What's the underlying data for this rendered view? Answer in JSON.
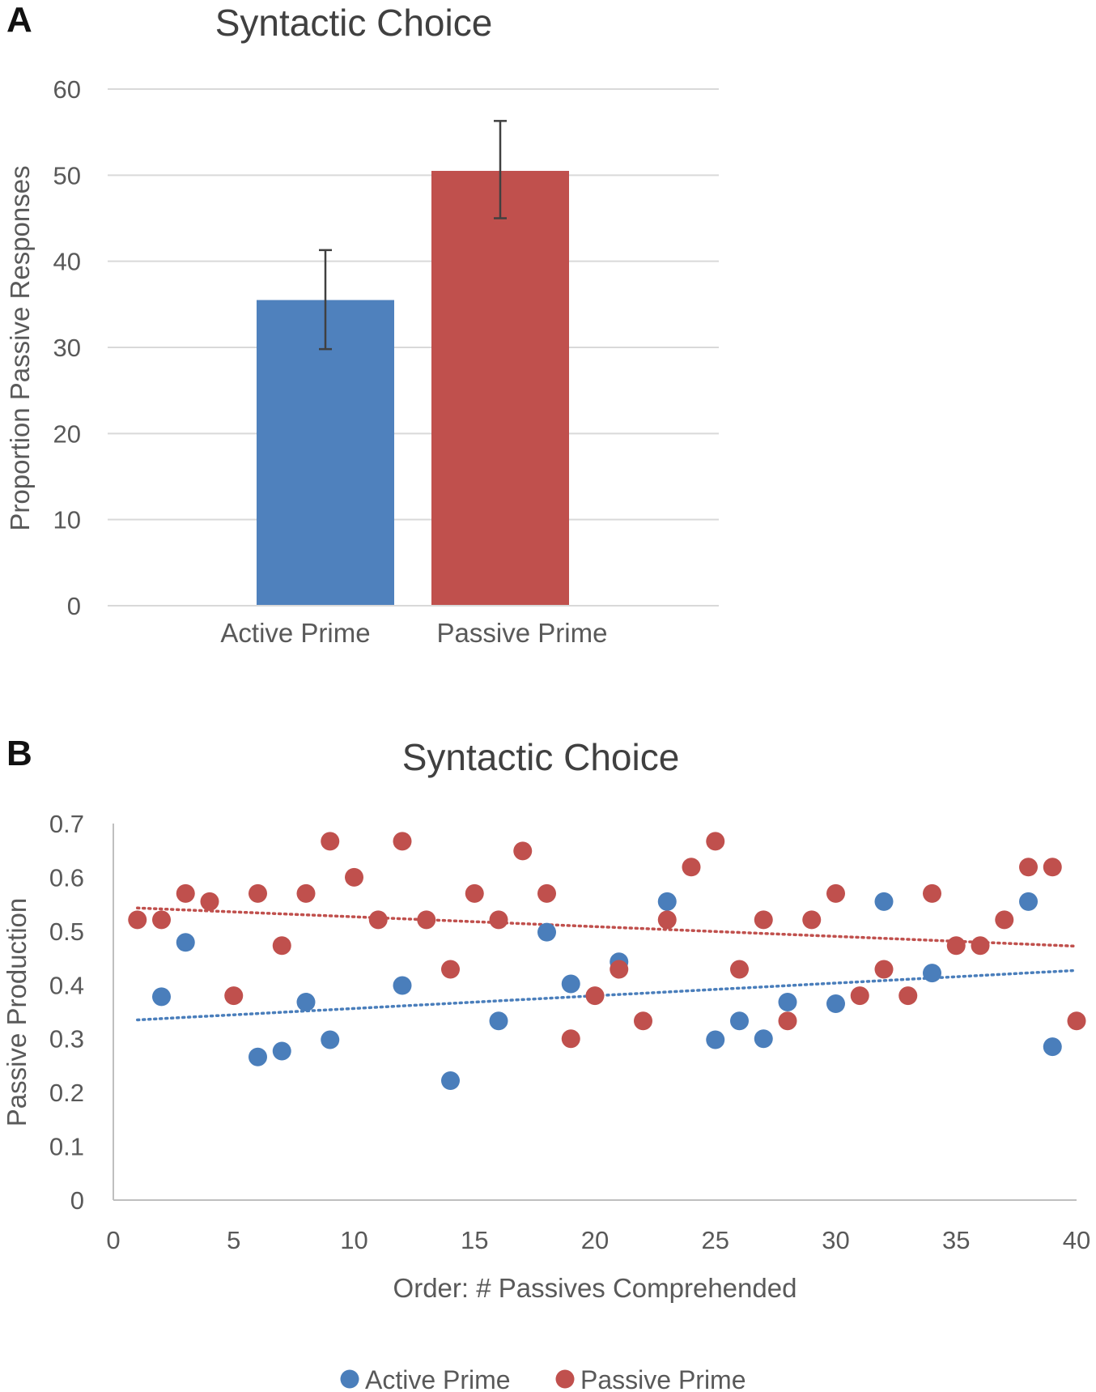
{
  "panels": {
    "a": "A",
    "b": "B"
  },
  "chart_data": [
    {
      "type": "bar",
      "title": "Syntactic Choice",
      "ylabel": "Proportion Passive Responses",
      "xlabel": "",
      "ylim": [
        0,
        60
      ],
      "yticks": [
        0,
        10,
        20,
        30,
        40,
        50,
        60
      ],
      "grid": true,
      "categories": [
        "Active Prime",
        "Passive Prime"
      ],
      "values": [
        35.5,
        50.5
      ],
      "error_low": [
        29.8,
        45.0
      ],
      "error_high": [
        41.3,
        56.3
      ],
      "colors": [
        "#4f81bd",
        "#c0504d"
      ]
    },
    {
      "type": "scatter",
      "title": "Syntactic Choice",
      "xlabel": "Order: # Passives Comprehended",
      "ylabel": "Passive Production",
      "xlim": [
        0,
        40
      ],
      "ylim": [
        0,
        0.7
      ],
      "xticks": [
        0,
        5,
        10,
        15,
        20,
        25,
        30,
        35,
        40
      ],
      "yticks": [
        "0",
        "0.1",
        "0.2",
        "0.3",
        "0.4",
        "0.5",
        "0.6",
        "0.7"
      ],
      "legend_position": "bottom",
      "series": [
        {
          "name": "Active Prime",
          "color": "#4a7ebb",
          "trendline": {
            "x": [
              1,
              40
            ],
            "y": [
              0.335,
              0.427
            ]
          },
          "points": [
            [
              2,
              0.378
            ],
            [
              3,
              0.479
            ],
            [
              6,
              0.266
            ],
            [
              7,
              0.277
            ],
            [
              8,
              0.368
            ],
            [
              9,
              0.298
            ],
            [
              12,
              0.399
            ],
            [
              14,
              0.222
            ],
            [
              16,
              0.333
            ],
            [
              18,
              0.498
            ],
            [
              19,
              0.402
            ],
            [
              21,
              0.443
            ],
            [
              23,
              0.555
            ],
            [
              25,
              0.298
            ],
            [
              26,
              0.333
            ],
            [
              27,
              0.3
            ],
            [
              28,
              0.368
            ],
            [
              30,
              0.365
            ],
            [
              32,
              0.555
            ],
            [
              34,
              0.422
            ],
            [
              38,
              0.555
            ],
            [
              39,
              0.285
            ]
          ]
        },
        {
          "name": "Passive Prime",
          "color": "#c0504d",
          "trendline": {
            "x": [
              1,
              40
            ],
            "y": [
              0.543,
              0.472
            ]
          },
          "points": [
            [
              1,
              0.521
            ],
            [
              2,
              0.521
            ],
            [
              3,
              0.57
            ],
            [
              4,
              0.555
            ],
            [
              5,
              0.38
            ],
            [
              6,
              0.57
            ],
            [
              7,
              0.473
            ],
            [
              8,
              0.57
            ],
            [
              9,
              0.667
            ],
            [
              10,
              0.6
            ],
            [
              11,
              0.521
            ],
            [
              12,
              0.667
            ],
            [
              13,
              0.521
            ],
            [
              14,
              0.429
            ],
            [
              15,
              0.57
            ],
            [
              16,
              0.521
            ],
            [
              17,
              0.649
            ],
            [
              18,
              0.57
            ],
            [
              19,
              0.3
            ],
            [
              20,
              0.38
            ],
            [
              21,
              0.429
            ],
            [
              22,
              0.333
            ],
            [
              23,
              0.521
            ],
            [
              24,
              0.619
            ],
            [
              25,
              0.667
            ],
            [
              26,
              0.429
            ],
            [
              27,
              0.521
            ],
            [
              28,
              0.333
            ],
            [
              29,
              0.521
            ],
            [
              30,
              0.57
            ],
            [
              31,
              0.38
            ],
            [
              32,
              0.429
            ],
            [
              33,
              0.38
            ],
            [
              34,
              0.57
            ],
            [
              35,
              0.473
            ],
            [
              36,
              0.473
            ],
            [
              37,
              0.521
            ],
            [
              38,
              0.619
            ],
            [
              39,
              0.619
            ],
            [
              40,
              0.333
            ]
          ]
        }
      ]
    }
  ]
}
